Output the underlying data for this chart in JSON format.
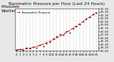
{
  "title": "Barometric Pressure per Hour (Last 24 Hours)",
  "left_label": "Milwaukee\nWeather",
  "legend_label": "Barometric Pressure",
  "background_color": "#e8e8e8",
  "plot_bg_color": "#ffffff",
  "grid_color": "#888888",
  "ylim": [
    29.0,
    30.3
  ],
  "xlim": [
    -0.5,
    24.5
  ],
  "yticks": [
    29.0,
    29.1,
    29.2,
    29.3,
    29.4,
    29.5,
    29.6,
    29.7,
    29.8,
    29.9,
    30.0,
    30.1,
    30.2,
    30.3
  ],
  "ytick_labels": [
    "29.00",
    "29.10",
    "29.20",
    "29.30",
    "29.40",
    "29.50",
    "29.60",
    "29.70",
    "29.80",
    "29.90",
    "30.00",
    "30.10",
    "30.20",
    "30.30"
  ],
  "xticks": [
    0,
    1,
    2,
    3,
    4,
    5,
    6,
    7,
    8,
    9,
    10,
    11,
    12,
    13,
    14,
    15,
    16,
    17,
    18,
    19,
    20,
    21,
    22,
    23,
    24
  ],
  "hours": [
    0,
    1,
    2,
    3,
    4,
    5,
    6,
    7,
    8,
    9,
    10,
    11,
    12,
    13,
    14,
    15,
    16,
    17,
    18,
    19,
    20,
    21,
    22,
    23,
    24
  ],
  "pressure": [
    29.02,
    29.06,
    29.04,
    29.09,
    29.07,
    29.12,
    29.1,
    29.18,
    29.15,
    29.22,
    29.28,
    29.38,
    29.44,
    29.52,
    29.48,
    29.6,
    29.55,
    29.68,
    29.75,
    29.82,
    29.9,
    30.0,
    30.05,
    30.12,
    30.18
  ],
  "scatter_color": "#111111",
  "trend_color": "#ff0000",
  "marker_size": 2.5,
  "title_fontsize": 4.2,
  "tick_fontsize": 2.8,
  "label_fontsize": 3.5,
  "line_width": 0.8,
  "scatter_marker": "+"
}
